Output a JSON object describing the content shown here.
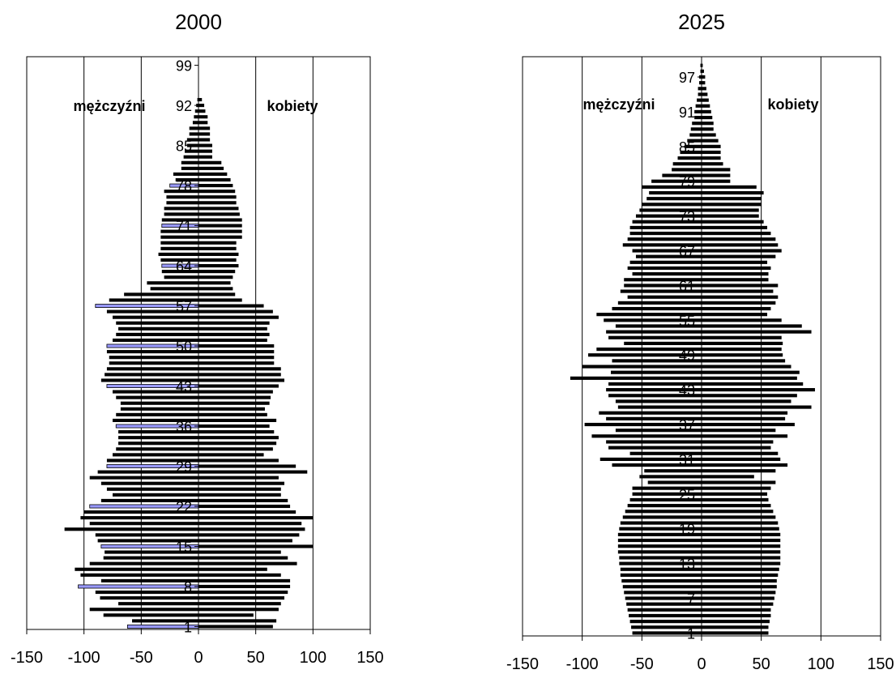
{
  "chart_data": [
    {
      "type": "bar",
      "orientation": "horizontal",
      "title": "2000",
      "xlim": [
        -150,
        150
      ],
      "x_ticks": [
        -150,
        -100,
        -50,
        0,
        50,
        100,
        150
      ],
      "x_tick_labels": [
        "-150",
        "-100",
        "-50",
        "0",
        "50",
        "100",
        "150"
      ],
      "grid": "vertical lines at -100, -50, 50, 100",
      "category_ticks": [
        1,
        8,
        15,
        22,
        29,
        36,
        43,
        50,
        57,
        64,
        71,
        78,
        85,
        92,
        99
      ],
      "category_tick_labels": [
        "1",
        "8",
        "15",
        "22",
        "29",
        "36",
        "43",
        "50",
        "57",
        "64",
        "71",
        "78",
        "85",
        "92",
        "99"
      ],
      "annotations": {
        "left": "mężczyźni",
        "right": "kobiety"
      },
      "ages": [
        1,
        2,
        3,
        4,
        5,
        6,
        7,
        8,
        9,
        10,
        11,
        12,
        13,
        14,
        15,
        16,
        17,
        18,
        19,
        20,
        21,
        22,
        23,
        24,
        25,
        26,
        27,
        28,
        29,
        30,
        31,
        32,
        33,
        34,
        35,
        36,
        37,
        38,
        39,
        40,
        41,
        42,
        43,
        44,
        45,
        46,
        47,
        48,
        49,
        50,
        51,
        52,
        53,
        54,
        55,
        56,
        57,
        58,
        59,
        60,
        61,
        62,
        63,
        64,
        65,
        66,
        67,
        68,
        69,
        70,
        71,
        72,
        73,
        74,
        75,
        76,
        77,
        78,
        79,
        80,
        81,
        82,
        83,
        84,
        85,
        86,
        87,
        88,
        89,
        90,
        91,
        92,
        93
      ],
      "series": [
        {
          "side": "left",
          "values": [
            -62,
            -58,
            -83,
            -95,
            -70,
            -86,
            -90,
            -105,
            -85,
            -103,
            -108,
            -95,
            -83,
            -82,
            -85,
            -88,
            -90,
            -117,
            -95,
            -103,
            -100,
            -95,
            -85,
            -75,
            -80,
            -85,
            -95,
            -88,
            -80,
            -80,
            -75,
            -72,
            -70,
            -70,
            -70,
            -72,
            -75,
            -72,
            -68,
            -68,
            -72,
            -75,
            -80,
            -85,
            -82,
            -80,
            -78,
            -78,
            -80,
            -80,
            -75,
            -72,
            -70,
            -72,
            -75,
            -80,
            -90,
            -78,
            -65,
            -42,
            -45,
            -30,
            -32,
            -32,
            -33,
            -35,
            -33,
            -33,
            -33,
            -33,
            -32,
            -32,
            -30,
            -30,
            -28,
            -28,
            -30,
            -25,
            -20,
            -22,
            -15,
            -15,
            -13,
            -12,
            -10,
            -10,
            -8,
            -8,
            -5,
            -4,
            -3,
            -2,
            -1
          ]
        },
        {
          "side": "right",
          "values": [
            65,
            68,
            48,
            70,
            72,
            75,
            78,
            80,
            80,
            72,
            60,
            86,
            78,
            72,
            100,
            82,
            88,
            93,
            90,
            100,
            85,
            80,
            78,
            72,
            72,
            75,
            70,
            95,
            85,
            70,
            57,
            65,
            68,
            70,
            66,
            62,
            68,
            60,
            58,
            62,
            63,
            65,
            70,
            75,
            72,
            72,
            66,
            66,
            66,
            66,
            60,
            62,
            60,
            62,
            70,
            65,
            57,
            38,
            32,
            30,
            28,
            30,
            32,
            35,
            33,
            35,
            33,
            33,
            38,
            38,
            38,
            38,
            36,
            35,
            33,
            33,
            32,
            30,
            28,
            25,
            22,
            20,
            12,
            12,
            12,
            10,
            10,
            10,
            8,
            8,
            6,
            5,
            3
          ]
        }
      ]
    },
    {
      "type": "bar",
      "orientation": "horizontal",
      "title": "2025",
      "xlim": [
        -150,
        150
      ],
      "x_ticks": [
        -150,
        -100,
        -50,
        0,
        50,
        100,
        150
      ],
      "x_tick_labels": [
        "-150",
        "-100",
        "-50",
        "0",
        "50",
        "100",
        "150"
      ],
      "grid": "vertical lines at -100, -50, 50, 100",
      "category_ticks": [
        1,
        7,
        13,
        19,
        25,
        31,
        37,
        43,
        49,
        55,
        61,
        67,
        73,
        79,
        85,
        91,
        97
      ],
      "category_tick_labels": [
        "1",
        "7",
        "13",
        "19",
        "25",
        "31",
        "37",
        "43",
        "49",
        "55",
        "61",
        "67",
        "73",
        "79",
        "85",
        "91",
        "97"
      ],
      "annotations": {
        "left": "mężczyźni",
        "right": "kobiety"
      },
      "ages": [
        1,
        2,
        3,
        4,
        5,
        6,
        7,
        8,
        9,
        10,
        11,
        12,
        13,
        14,
        15,
        16,
        17,
        18,
        19,
        20,
        21,
        22,
        23,
        24,
        25,
        26,
        27,
        28,
        29,
        30,
        31,
        32,
        33,
        34,
        35,
        36,
        37,
        38,
        39,
        40,
        41,
        42,
        43,
        44,
        45,
        46,
        47,
        48,
        49,
        50,
        51,
        52,
        53,
        54,
        55,
        56,
        57,
        58,
        59,
        60,
        61,
        62,
        63,
        64,
        65,
        66,
        67,
        68,
        69,
        70,
        71,
        72,
        73,
        74,
        75,
        76,
        77,
        78,
        79,
        80,
        81,
        82,
        83,
        84,
        85,
        86,
        87,
        88,
        89,
        90,
        91,
        92,
        93,
        94,
        95,
        96,
        97,
        98,
        99
      ],
      "series": [
        {
          "side": "left",
          "values": [
            -58,
            -59,
            -60,
            -61,
            -62,
            -63,
            -64,
            -65,
            -66,
            -67,
            -68,
            -68,
            -69,
            -69,
            -70,
            -70,
            -70,
            -70,
            -69,
            -68,
            -66,
            -64,
            -62,
            -60,
            -58,
            -58,
            -45,
            -52,
            -48,
            -75,
            -85,
            -60,
            -78,
            -80,
            -92,
            -72,
            -98,
            -80,
            -86,
            -70,
            -72,
            -78,
            -80,
            -78,
            -110,
            -76,
            -100,
            -75,
            -95,
            -88,
            -65,
            -78,
            -80,
            -72,
            -82,
            -88,
            -75,
            -70,
            -62,
            -68,
            -65,
            -65,
            -58,
            -62,
            -60,
            -55,
            -58,
            -66,
            -62,
            -60,
            -60,
            -58,
            -55,
            -52,
            -50,
            -46,
            -44,
            -50,
            -42,
            -33,
            -25,
            -24,
            -20,
            -18,
            -14,
            -12,
            -10,
            -9,
            -8,
            -6,
            -6,
            -5,
            -4,
            -3,
            -3,
            -2,
            -2,
            -1,
            -1
          ]
        },
        {
          "side": "right",
          "values": [
            56,
            56,
            57,
            58,
            58,
            60,
            61,
            62,
            63,
            63,
            64,
            65,
            66,
            66,
            66,
            66,
            66,
            66,
            65,
            64,
            62,
            60,
            58,
            56,
            55,
            58,
            62,
            44,
            62,
            72,
            66,
            64,
            58,
            60,
            72,
            62,
            78,
            70,
            72,
            92,
            75,
            80,
            95,
            85,
            80,
            82,
            75,
            70,
            68,
            67,
            68,
            67,
            92,
            84,
            67,
            55,
            58,
            62,
            64,
            60,
            64,
            56,
            56,
            58,
            55,
            62,
            67,
            64,
            62,
            58,
            55,
            52,
            48,
            48,
            50,
            50,
            52,
            46,
            24,
            24,
            24,
            18,
            16,
            16,
            16,
            14,
            12,
            10,
            10,
            9,
            8,
            7,
            6,
            5,
            4,
            3,
            3,
            2,
            1
          ]
        }
      ]
    }
  ]
}
